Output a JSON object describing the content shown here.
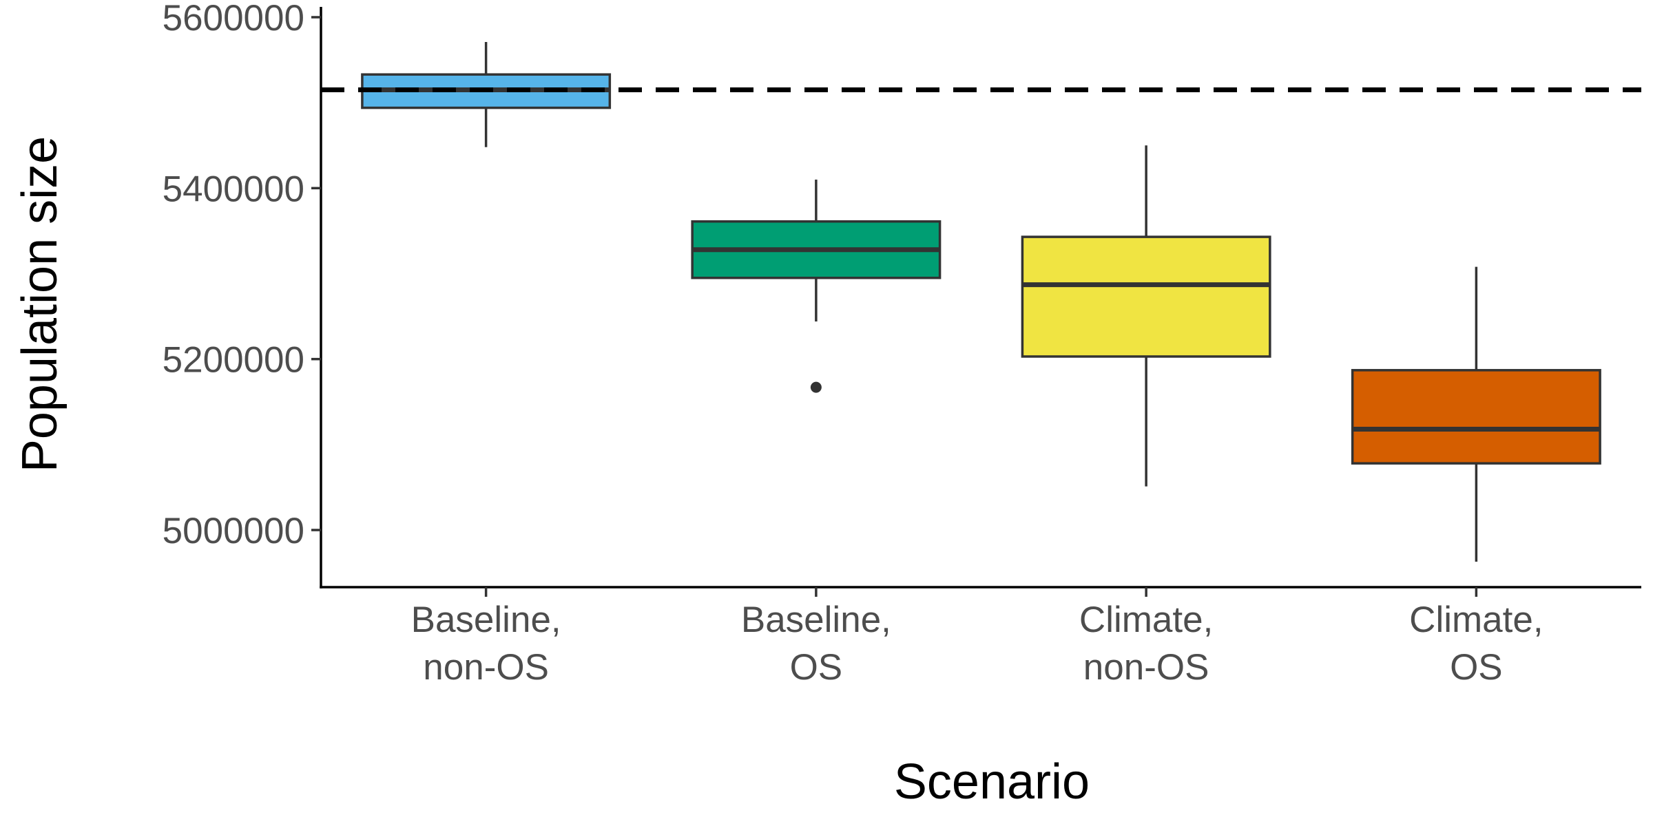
{
  "chart_data": {
    "type": "box",
    "title": "",
    "xlabel": "Scenario",
    "ylabel": "Population size",
    "ylim": [
      4930000,
      5600000
    ],
    "yticks": [
      5000000,
      5200000,
      5400000,
      5600000
    ],
    "ytick_labels": [
      "5000000",
      "5200000",
      "5400000",
      "5600000"
    ],
    "grid": false,
    "legend": "none",
    "reference_line": {
      "y": 5515000,
      "style": "dashed",
      "color": "#000000"
    },
    "categories": [
      {
        "label_lines": [
          "Baseline,",
          "non-OS"
        ],
        "color": "#56b4e9",
        "min": 5448000,
        "q1": 5494000,
        "median": 5515000,
        "q3": 5533000,
        "max": 5571000,
        "outliers": []
      },
      {
        "label_lines": [
          "Baseline,",
          "OS"
        ],
        "color": "#009e73",
        "min": 5244000,
        "q1": 5295000,
        "median": 5328000,
        "q3": 5361000,
        "max": 5410000,
        "outliers": [
          5167000
        ]
      },
      {
        "label_lines": [
          "Climate,",
          "non-OS"
        ],
        "color": "#f0e442",
        "min": 5051000,
        "q1": 5203000,
        "median": 5287000,
        "q3": 5343000,
        "max": 5450000,
        "outliers": []
      },
      {
        "label_lines": [
          "Climate,",
          "OS"
        ],
        "color": "#d55e00",
        "min": 4963000,
        "q1": 5078000,
        "median": 5118000,
        "q3": 5187000,
        "max": 5308000,
        "outliers": []
      }
    ]
  }
}
